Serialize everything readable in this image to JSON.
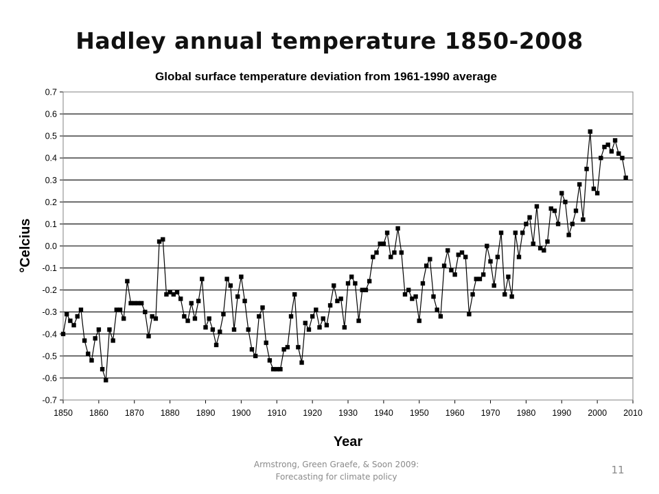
{
  "slide": {
    "title": "Hadley annual temperature 1850-2008",
    "citation_line1": "Armstrong, Green Graefe, & Soon 2009:",
    "citation_line2": "Forecasting for climate policy",
    "page_number": "11"
  },
  "chart_data": {
    "type": "line",
    "title": "Global surface temperature deviation from 1961-1990 average",
    "xlabel": "Year",
    "ylabel": "°Celcius",
    "xlim": [
      1850,
      2010
    ],
    "ylim": [
      -0.7,
      0.7
    ],
    "xticks": [
      "1850",
      "1860",
      "1870",
      "1880",
      "1890",
      "1900",
      "1910",
      "1920",
      "1930",
      "1940",
      "1950",
      "1960",
      "1970",
      "1980",
      "1990",
      "2000",
      "2010"
    ],
    "yticks": [
      "0.7",
      "0.6",
      "0.5",
      "0.4",
      "0.3",
      "0.2",
      "0.1",
      "0.0",
      "-0.1",
      "-0.2",
      "-0.3",
      "-0.4",
      "-0.5",
      "-0.6",
      "-0.7"
    ],
    "grid": "horizontal",
    "legend": "none",
    "marker": "square",
    "color": "#000000",
    "series": [
      {
        "x": [
          1850,
          1851,
          1852,
          1853,
          1854,
          1855,
          1856,
          1857,
          1858,
          1859,
          1860,
          1861,
          1862,
          1863,
          1864,
          1865,
          1866,
          1867,
          1868,
          1869,
          1870,
          1871,
          1872,
          1873,
          1874,
          1875,
          1876,
          1877,
          1878,
          1879,
          1880,
          1881,
          1882,
          1883,
          1884,
          1885,
          1886,
          1887,
          1888,
          1889,
          1890,
          1891,
          1892,
          1893,
          1894,
          1895,
          1896,
          1897,
          1898,
          1899,
          1900,
          1901,
          1902,
          1903,
          1904,
          1905,
          1906,
          1907,
          1908,
          1909,
          1910,
          1911,
          1912,
          1913,
          1914,
          1915,
          1916,
          1917,
          1918,
          1919,
          1920,
          1921,
          1922,
          1923,
          1924,
          1925,
          1926,
          1927,
          1928,
          1929,
          1930,
          1931,
          1932,
          1933,
          1934,
          1935,
          1936,
          1937,
          1938,
          1939,
          1940,
          1941,
          1942,
          1943,
          1944,
          1945,
          1946,
          1947,
          1948,
          1949,
          1950,
          1951,
          1952,
          1953,
          1954,
          1955,
          1956,
          1957,
          1958,
          1959,
          1960,
          1961,
          1962,
          1963,
          1964,
          1965,
          1966,
          1967,
          1968,
          1969,
          1970,
          1971,
          1972,
          1973,
          1974,
          1975,
          1976,
          1977,
          1978,
          1979,
          1980,
          1981,
          1982,
          1983,
          1984,
          1985,
          1986,
          1987,
          1988,
          1989,
          1990,
          1991,
          1992,
          1993,
          1994,
          1995,
          1996,
          1997,
          1998,
          1999,
          2000,
          2001,
          2002,
          2003,
          2004,
          2005,
          2006,
          2007,
          2008
        ],
        "values": [
          -0.4,
          -0.31,
          -0.34,
          -0.36,
          -0.32,
          -0.29,
          -0.43,
          -0.49,
          -0.52,
          -0.42,
          -0.38,
          -0.56,
          -0.61,
          -0.38,
          -0.43,
          -0.29,
          -0.29,
          -0.33,
          -0.16,
          -0.26,
          -0.26,
          -0.26,
          -0.26,
          -0.3,
          -0.41,
          -0.32,
          -0.33,
          0.02,
          0.03,
          -0.22,
          -0.21,
          -0.22,
          -0.21,
          -0.24,
          -0.32,
          -0.34,
          -0.26,
          -0.33,
          -0.25,
          -0.15,
          -0.37,
          -0.33,
          -0.38,
          -0.45,
          -0.39,
          -0.31,
          -0.15,
          -0.18,
          -0.38,
          -0.23,
          -0.14,
          -0.25,
          -0.38,
          -0.47,
          -0.5,
          -0.32,
          -0.28,
          -0.44,
          -0.52,
          -0.56,
          -0.56,
          -0.56,
          -0.47,
          -0.46,
          -0.32,
          -0.22,
          -0.46,
          -0.53,
          -0.35,
          -0.38,
          -0.32,
          -0.29,
          -0.37,
          -0.33,
          -0.36,
          -0.27,
          -0.18,
          -0.25,
          -0.24,
          -0.37,
          -0.17,
          -0.14,
          -0.17,
          -0.34,
          -0.2,
          -0.2,
          -0.16,
          -0.05,
          -0.03,
          0.01,
          0.01,
          0.06,
          -0.05,
          -0.03,
          0.08,
          -0.03,
          -0.22,
          -0.2,
          -0.24,
          -0.23,
          -0.34,
          -0.17,
          -0.09,
          -0.06,
          -0.23,
          -0.29,
          -0.32,
          -0.09,
          -0.02,
          -0.11,
          -0.13,
          -0.04,
          -0.03,
          -0.05,
          -0.31,
          -0.22,
          -0.15,
          -0.15,
          -0.13,
          0.0,
          -0.07,
          -0.18,
          -0.05,
          0.06,
          -0.22,
          -0.14,
          -0.23,
          0.06,
          -0.05,
          0.06,
          0.1,
          0.13,
          0.01,
          0.18,
          -0.01,
          -0.02,
          0.02,
          0.17,
          0.16,
          0.1,
          0.24,
          0.2,
          0.05,
          0.1,
          0.16,
          0.28,
          0.12,
          0.35,
          0.52,
          0.26,
          0.24,
          0.4,
          0.45,
          0.46,
          0.43,
          0.48,
          0.42,
          0.4,
          0.31
        ]
      }
    ]
  }
}
